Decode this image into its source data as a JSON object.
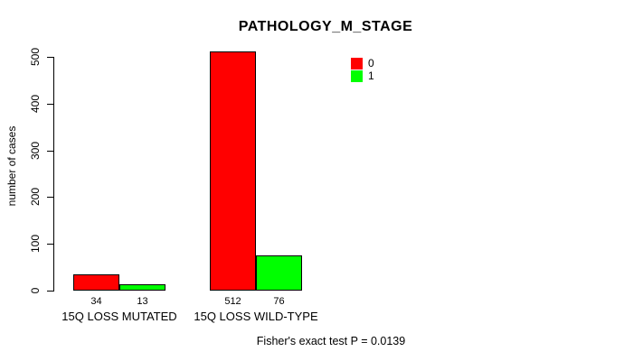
{
  "chart_data": {
    "type": "bar",
    "title": "PATHOLOGY_M_STAGE",
    "ylabel": "number of cases",
    "xlabel": "",
    "categories": [
      "15Q LOSS MUTATED",
      "15Q LOSS WILD-TYPE"
    ],
    "series": [
      {
        "name": "0",
        "color": "#ff0000",
        "values": [
          34,
          512
        ]
      },
      {
        "name": "1",
        "color": "#00ff00",
        "values": [
          13,
          76
        ]
      }
    ],
    "bar_value_labels": [
      [
        "34",
        "13"
      ],
      [
        "512",
        "76"
      ]
    ],
    "yticks": [
      0,
      100,
      200,
      300,
      400,
      500
    ],
    "ylim": [
      0,
      520
    ],
    "grid": false,
    "legend": {
      "position": "top-right",
      "entries": [
        {
          "label": "0",
          "color": "#ff0000"
        },
        {
          "label": "1",
          "color": "#00ff00"
        }
      ]
    },
    "footnote": "Fisher's exact test P = 0.0139",
    "colors": {
      "background": "#ffffff",
      "axis": "#000000",
      "text": "#000000"
    }
  }
}
